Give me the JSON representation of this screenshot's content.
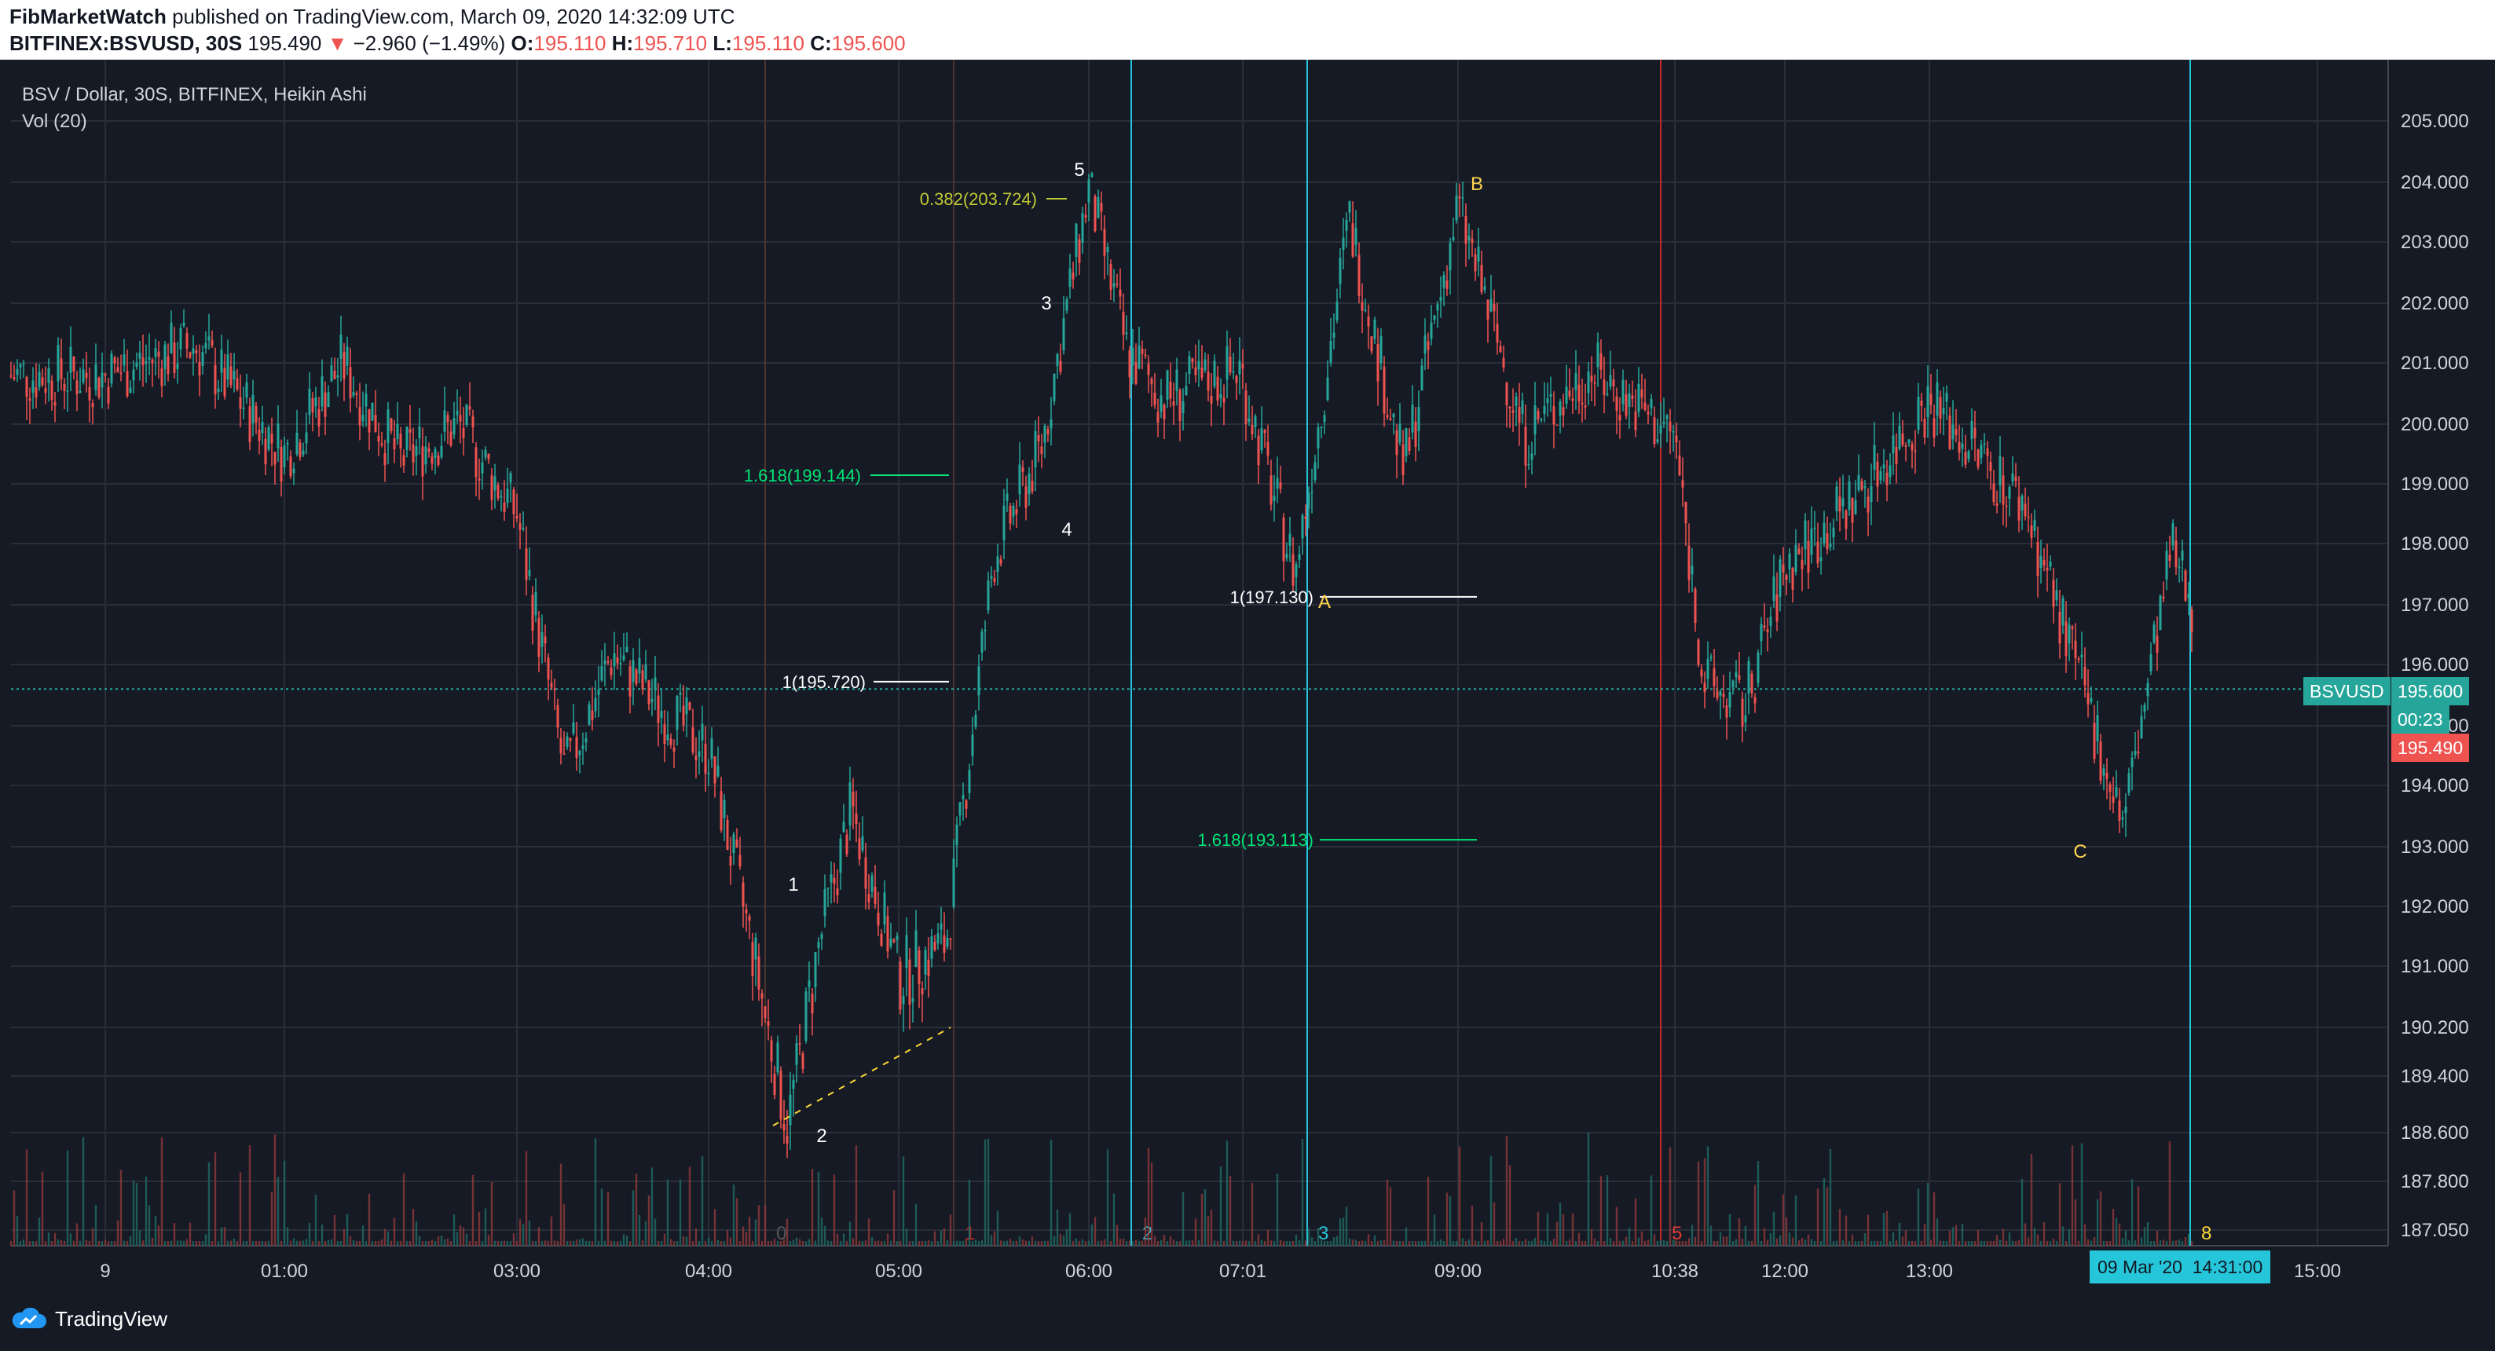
{
  "header": {
    "author": "FibMarketWatch",
    "published_text": "published on TradingView.com, March 09, 2020 14:32:09 UTC",
    "symbol_interval": "BITFINEX:BSVUSD, 30S",
    "last_price": "195.490",
    "change": "−2.960 (−1.49%)",
    "open_label": "O:",
    "open": "195.110",
    "high_label": "H:",
    "high": "195.710",
    "low_label": "L:",
    "low": "195.110",
    "close_label": "C:",
    "close": "195.600"
  },
  "legend": {
    "title": "BSV / Dollar, 30S, BITFINEX, Heikin Ashi",
    "volume": "Vol (20)"
  },
  "price_axis": {
    "ticks": [
      "205.000",
      "204.000",
      "203.000",
      "202.000",
      "201.000",
      "200.000",
      "199.000",
      "198.000",
      "197.000",
      "196.000",
      "195.000",
      "194.000",
      "193.000",
      "192.000",
      "191.000",
      "190.200",
      "189.400",
      "188.600",
      "187.800",
      "187.050"
    ],
    "symbol_tag": "BSVUSD",
    "current_price_tag": "195.600",
    "countdown_tag": "00:23",
    "last_price_tag": "195.490"
  },
  "time_axis": {
    "ticks": [
      "9",
      "01:00",
      "03:00",
      "04:00",
      "05:00",
      "06:00",
      "07:01",
      "09:00",
      "10:38",
      "12:00",
      "13:00",
      "15:00"
    ],
    "cursor_date": "09 Mar '20",
    "cursor_time": "14:31:00"
  },
  "wave_labels": [
    "1",
    "2",
    "3",
    "4",
    "5",
    "A",
    "B",
    "C"
  ],
  "cycle_labels": [
    "0",
    "1",
    "2",
    "3",
    "5",
    "8"
  ],
  "fib_levels": [
    {
      "text": "0.382(203.724)",
      "price": 203.724,
      "color": "#c0ca33"
    },
    {
      "text": "1.618(199.144)",
      "price": 199.144,
      "color": "#00e676"
    },
    {
      "text": "1(197.130)",
      "price": 197.13,
      "color": "#ffffff"
    },
    {
      "text": "1(195.720)",
      "price": 195.72,
      "color": "#ffffff"
    },
    {
      "text": "1.618(193.113)",
      "price": 193.113,
      "color": "#00e676"
    }
  ],
  "colors": {
    "up": "#26a69a",
    "down": "#ef5350",
    "background": "#161a25",
    "grid": "#2a2e39",
    "cyan_line": "#26c6da",
    "red_line": "#c62828",
    "wave_label": "#ffffff",
    "abc_label": "#ffd54f"
  },
  "footer": {
    "brand": "TradingView"
  },
  "chart_data": {
    "type": "line",
    "series": [
      {
        "x": [
          "00:00",
          "00:30",
          "01:00",
          "01:30",
          "02:00",
          "02:30",
          "03:00",
          "03:15",
          "03:30",
          "03:45",
          "04:00",
          "04:15",
          "04:25",
          "04:35",
          "04:45",
          "05:00",
          "05:15",
          "05:30",
          "05:45",
          "06:00",
          "06:15",
          "06:30",
          "07:00",
          "07:30",
          "08:00",
          "08:30",
          "09:00",
          "09:30",
          "10:00",
          "10:38",
          "11:00",
          "11:30",
          "12:00",
          "12:30",
          "13:00",
          "13:30",
          "14:00",
          "14:15",
          "14:31"
        ],
        "values": [
          200.8,
          201.3,
          199.5,
          201.0,
          199.4,
          200.0,
          198.5,
          194.2,
          196.2,
          195.3,
          194.6,
          191.0,
          188.7,
          191.4,
          193.6,
          190.9,
          191.4,
          197.8,
          199.6,
          203.9,
          201.2,
          200.4,
          200.9,
          197.5,
          203.4,
          199.2,
          203.6,
          199.8,
          200.9,
          199.8,
          195.7,
          195.3,
          197.6,
          198.8,
          200.4,
          198.6,
          193.4,
          197.9,
          195.6
        ]
      }
    ],
    "ylim": [
      186.6,
      205.6
    ]
  }
}
